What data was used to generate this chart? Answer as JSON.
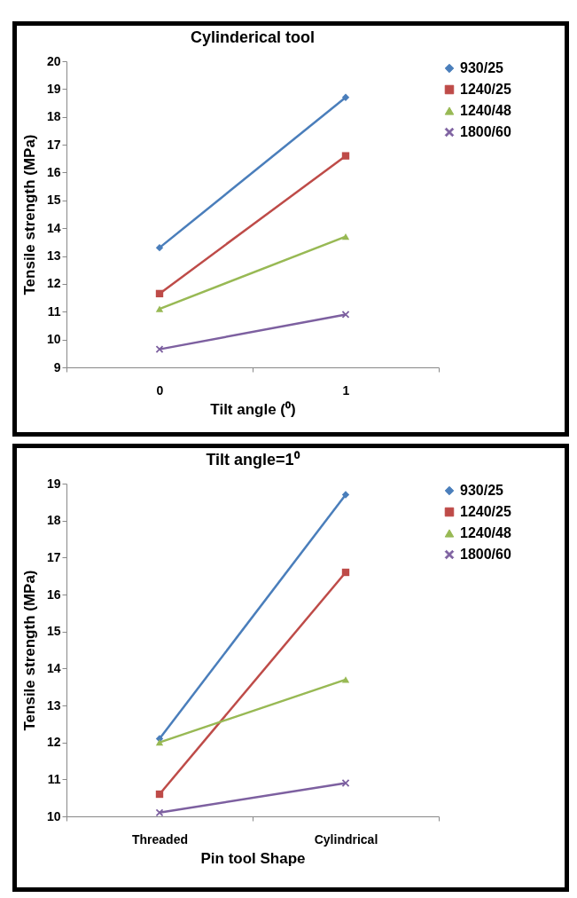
{
  "chart_data": [
    {
      "type": "line",
      "title": "Cylinderical tool",
      "xlabel": "Tilt angle (⁰)",
      "ylabel": "Tensile strength  (MPa)",
      "categories": [
        "0",
        "1"
      ],
      "ylim": [
        9,
        20
      ],
      "yticks": [
        9,
        10,
        11,
        12,
        13,
        14,
        15,
        16,
        17,
        18,
        19,
        20
      ],
      "grid": false,
      "legend": "right",
      "series": [
        {
          "name": "930/25",
          "color": "#4a7ebb",
          "marker": "diamond",
          "values": [
            13.3,
            18.7
          ]
        },
        {
          "name": "1240/25",
          "color": "#be4b48",
          "marker": "square",
          "values": [
            11.65,
            16.6
          ]
        },
        {
          "name": "1240/48",
          "color": "#98b954",
          "marker": "triangle",
          "values": [
            11.1,
            13.7
          ]
        },
        {
          "name": "1800/60",
          "color": "#7d60a0",
          "marker": "cross",
          "values": [
            9.65,
            10.9
          ]
        }
      ]
    },
    {
      "type": "line",
      "title": "Tilt angle=1⁰",
      "xlabel": "Pin tool Shape",
      "ylabel": "Tensile strength  (MPa)",
      "categories": [
        "Threaded",
        "Cylindrical"
      ],
      "ylim": [
        10,
        19
      ],
      "yticks": [
        10,
        11,
        12,
        13,
        14,
        15,
        16,
        17,
        18,
        19
      ],
      "grid": false,
      "legend": "right",
      "series": [
        {
          "name": "930/25",
          "color": "#4a7ebb",
          "marker": "diamond",
          "values": [
            12.1,
            18.7
          ]
        },
        {
          "name": "1240/25",
          "color": "#be4b48",
          "marker": "square",
          "values": [
            10.6,
            16.6
          ]
        },
        {
          "name": "1240/48",
          "color": "#98b954",
          "marker": "triangle",
          "values": [
            12.0,
            13.7
          ]
        },
        {
          "name": "1800/60",
          "color": "#7d60a0",
          "marker": "cross",
          "values": [
            10.1,
            10.9
          ]
        }
      ]
    }
  ]
}
